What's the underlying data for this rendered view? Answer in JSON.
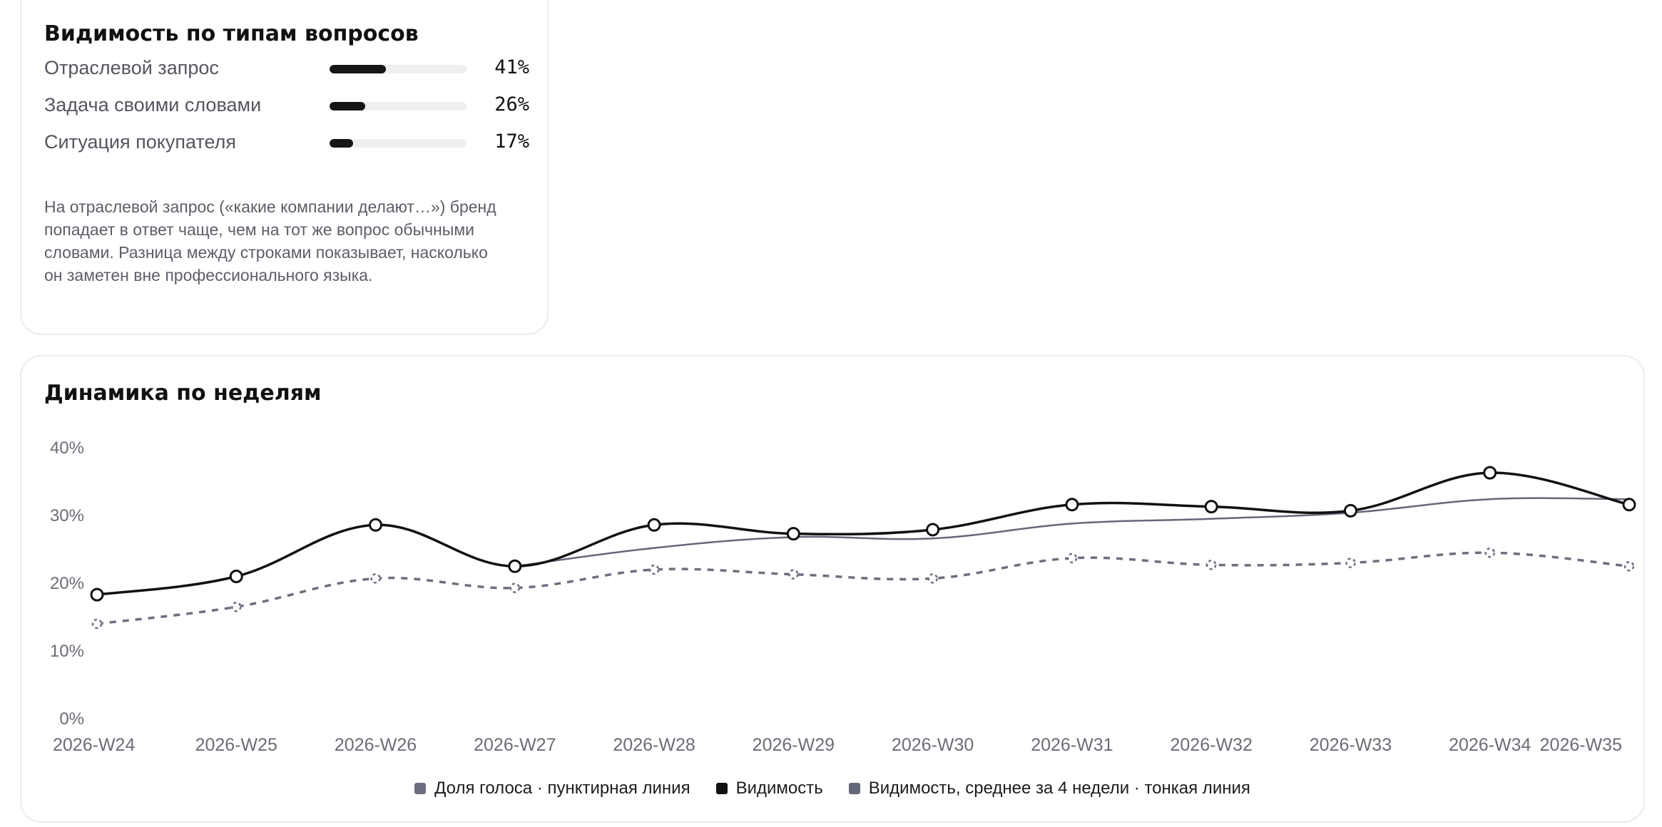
{
  "types_card": {
    "title": "Видимость по типам вопросов",
    "rows": [
      {
        "label": "Отраслевой запрос",
        "value_text": "41%",
        "fraction": 0.41
      },
      {
        "label": "Задача своими словами",
        "value_text": "26%",
        "fraction": 0.26
      },
      {
        "label": "Ситуация покупателя",
        "value_text": "17%",
        "fraction": 0.17
      }
    ],
    "note": "На отраслевой запрос («какие компании делают…») бренд попадает в ответ чаще, чем на тот же вопрос обычными словами. Разница между строками показывает, насколько он заметен вне профессионального языка."
  },
  "weekly_card": {
    "title": "Динамика по неделям"
  },
  "chart_data": {
    "type": "line",
    "x": [
      "2026-W24",
      "2026-W25",
      "2026-W26",
      "2026-W27",
      "2026-W28",
      "2026-W29",
      "2026-W30",
      "2026-W31",
      "2026-W32",
      "2026-W33",
      "2026-W34",
      "2026-W35"
    ],
    "ylim": [
      0,
      40
    ],
    "y_ticks": [
      {
        "value": 40,
        "label": "40%"
      },
      {
        "value": 30,
        "label": "30%"
      },
      {
        "value": 20,
        "label": "20%"
      },
      {
        "value": 10,
        "label": "10%"
      },
      {
        "value": 0,
        "label": "0%"
      }
    ],
    "series": [
      {
        "name": "Доля голоса · пунктирная линия",
        "color": "#6b6f7f",
        "style": "dashed",
        "values": [
          14.0,
          16.5,
          20.7,
          19.3,
          22.0,
          21.3,
          20.7,
          23.7,
          22.7,
          23.0,
          24.5,
          22.5
        ]
      },
      {
        "name": "Видимость",
        "color": "#111111",
        "style": "solid-markers",
        "values": [
          18.3,
          21.0,
          28.6,
          22.5,
          28.6,
          27.3,
          27.9,
          31.6,
          31.3,
          30.7,
          36.3,
          31.6
        ]
      },
      {
        "name": "Видимость, среднее за 4 недели · тонкая линия",
        "color": "#646878",
        "style": "thin",
        "start_index": 3,
        "values": [
          null,
          null,
          null,
          22.5,
          25.2,
          26.8,
          26.6,
          28.8,
          29.5,
          30.4,
          32.4,
          32.4
        ]
      }
    ],
    "legend_position": "bottom-center",
    "grid": false
  }
}
